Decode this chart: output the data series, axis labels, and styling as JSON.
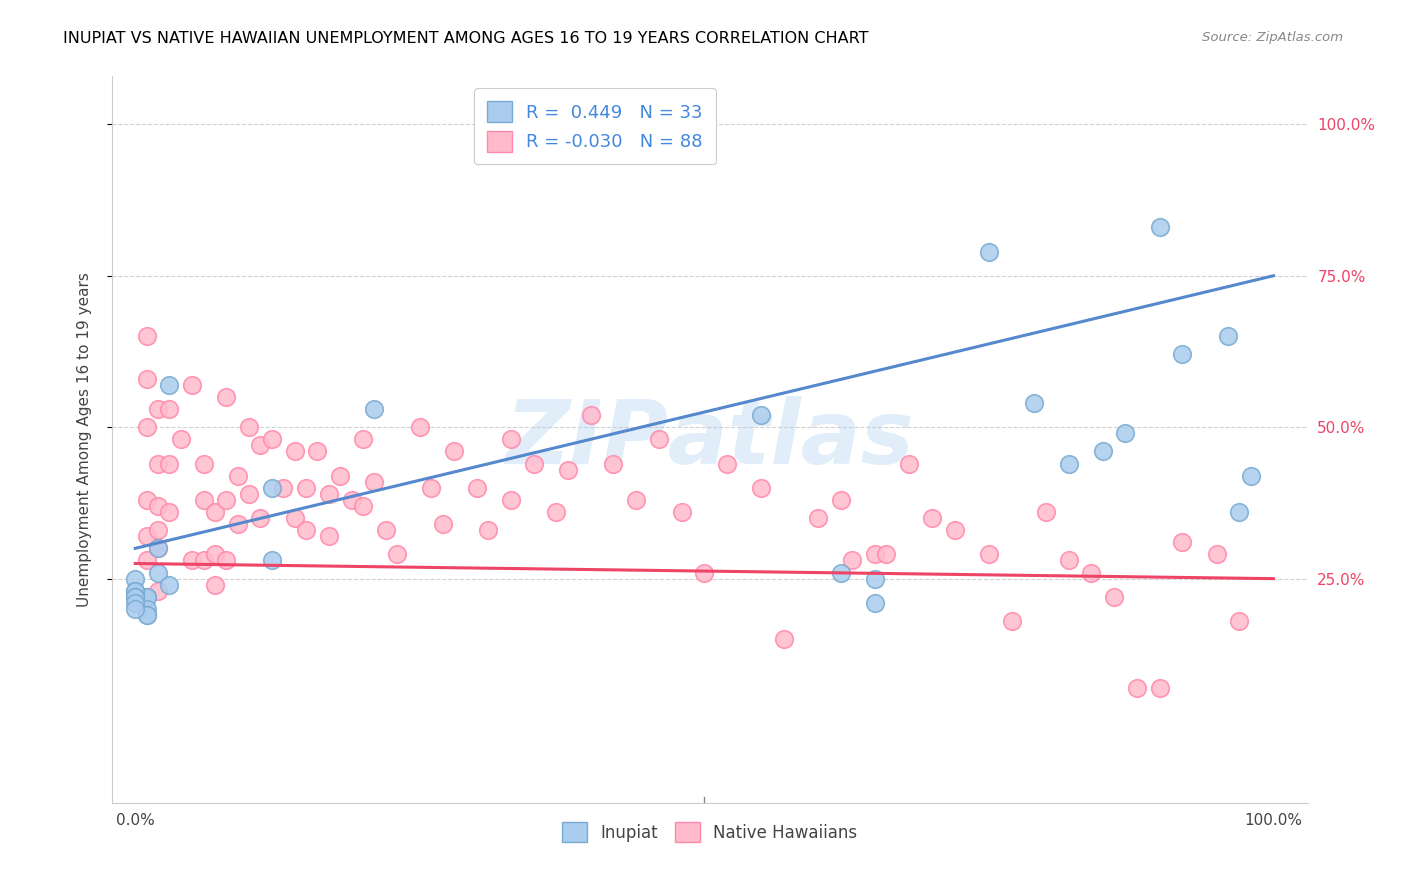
{
  "title": "INUPIAT VS NATIVE HAWAIIAN UNEMPLOYMENT AMONG AGES 16 TO 19 YEARS CORRELATION CHART",
  "source_text": "Source: ZipAtlas.com",
  "ylabel": "Unemployment Among Ages 16 to 19 years",
  "blue_color": "#AACCEE",
  "blue_edge": "#7AAAD0",
  "pink_color": "#FFBBCC",
  "pink_edge": "#FF88AA",
  "trend_blue": "#5588CC",
  "trend_pink": "#EE4466",
  "legend_color": "#4488DD",
  "legend_line1_r": "R =  0.449",
  "legend_line1_n": "N = 33",
  "legend_line2_r": "R = -0.030",
  "legend_line2_n": "N = 88",
  "inupiat_x": [
    2,
    2,
    3,
    1,
    1,
    1,
    1,
    1,
    0,
    0,
    0,
    0,
    0,
    0,
    0,
    3,
    12,
    12,
    21,
    55,
    62,
    65,
    65,
    75,
    79,
    82,
    85,
    87,
    90,
    92,
    96,
    97,
    98
  ],
  "inupiat_y": [
    30,
    26,
    24,
    22,
    22,
    20,
    19,
    19,
    25,
    23,
    23,
    22,
    22,
    21,
    20,
    57,
    40,
    28,
    53,
    52,
    26,
    21,
    25,
    79,
    54,
    44,
    46,
    49,
    83,
    62,
    65,
    36,
    42
  ],
  "hawaiian_x": [
    1,
    1,
    1,
    1,
    1,
    1,
    2,
    2,
    2,
    2,
    2,
    2,
    3,
    3,
    3,
    4,
    5,
    5,
    6,
    6,
    6,
    7,
    7,
    7,
    8,
    8,
    8,
    9,
    9,
    10,
    10,
    11,
    11,
    12,
    13,
    14,
    14,
    15,
    15,
    16,
    17,
    17,
    18,
    19,
    20,
    20,
    21,
    22,
    23,
    25,
    26,
    27,
    28,
    30,
    31,
    33,
    33,
    35,
    37,
    38,
    40,
    42,
    44,
    46,
    48,
    50,
    52,
    55,
    57,
    60,
    62,
    63,
    65,
    66,
    68,
    70,
    72,
    75,
    77,
    80,
    82,
    84,
    86,
    88,
    90,
    92,
    95,
    97
  ],
  "hawaiian_y": [
    65,
    58,
    50,
    38,
    32,
    28,
    53,
    44,
    37,
    33,
    30,
    23,
    53,
    44,
    36,
    48,
    57,
    28,
    44,
    38,
    28,
    36,
    29,
    24,
    55,
    38,
    28,
    42,
    34,
    50,
    39,
    47,
    35,
    48,
    40,
    35,
    46,
    40,
    33,
    46,
    39,
    32,
    42,
    38,
    48,
    37,
    41,
    33,
    29,
    50,
    40,
    34,
    46,
    40,
    33,
    48,
    38,
    44,
    36,
    43,
    52,
    44,
    38,
    48,
    36,
    26,
    44,
    40,
    15,
    35,
    38,
    28,
    29,
    29,
    44,
    35,
    33,
    29,
    18,
    36,
    28,
    26,
    22,
    7,
    7,
    31,
    29,
    18
  ],
  "blue_trendline_x": [
    0,
    100
  ],
  "blue_trendline_y": [
    30,
    75
  ],
  "pink_trendline_x": [
    0,
    100
  ],
  "pink_trendline_y": [
    27.5,
    25.0
  ],
  "xlim": [
    -2,
    103
  ],
  "ylim": [
    -12,
    108
  ],
  "yticks": [
    25,
    50,
    75,
    100
  ],
  "ytick_labels": [
    "25.0%",
    "50.0%",
    "75.0%",
    "100.0%"
  ],
  "xticks": [
    0,
    100
  ],
  "xtick_labels": [
    "0.0%",
    "100.0%"
  ]
}
